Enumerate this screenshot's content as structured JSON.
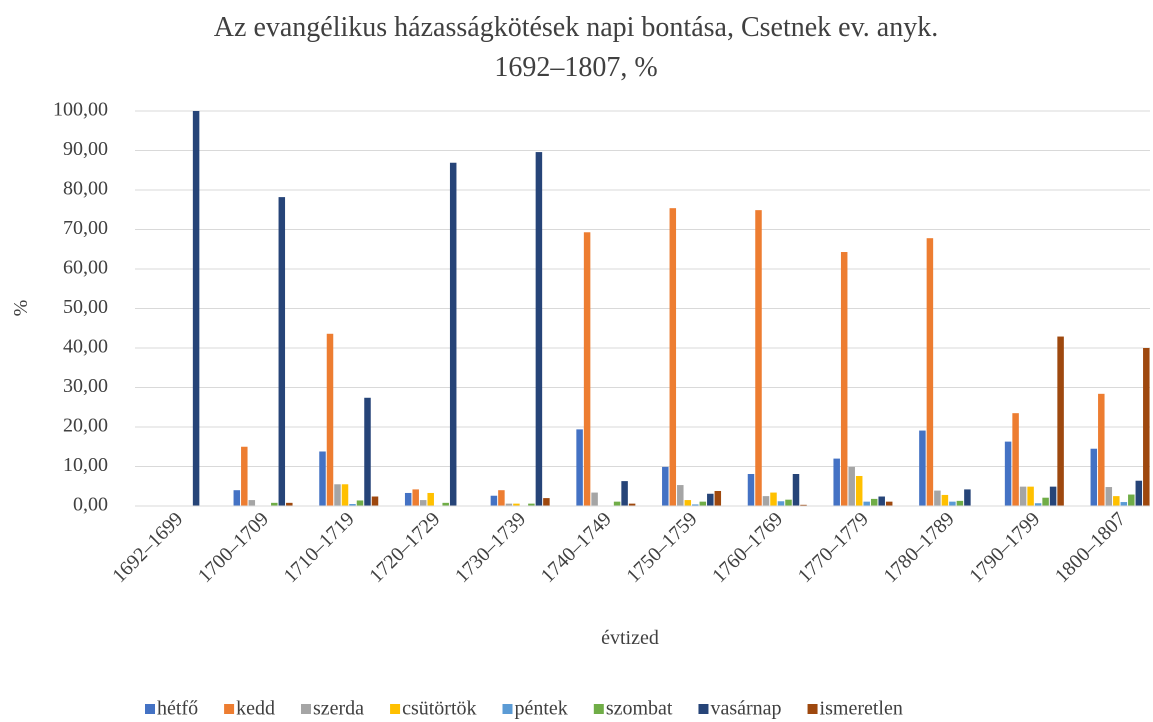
{
  "chart_data": {
    "type": "bar",
    "title": "Az evangélikus házasságkötések napi bontása, Csetnek ev. anyk. 1692–1807, %",
    "x_label": "évtized",
    "y_label": "%",
    "categories": [
      "1692–1699",
      "1700–1709",
      "1710–1719",
      "1720–1729",
      "1730–1739",
      "1740–1749",
      "1750–1759",
      "1760–1769",
      "1770–1779",
      "1780–1789",
      "1790–1799",
      "1800–1807"
    ],
    "series": [
      {
        "name": "hétfő",
        "color": "#4472c4",
        "values": [
          0,
          4,
          13.8,
          3.3,
          2.6,
          19.4,
          9.9,
          8.1,
          12,
          19.1,
          16.3,
          14.5
        ]
      },
      {
        "name": "kedd",
        "color": "#ed7d31",
        "values": [
          0,
          15,
          43.6,
          4.2,
          4,
          69.3,
          75.4,
          74.9,
          64.3,
          67.8,
          23.5,
          28.4
        ]
      },
      {
        "name": "szerda",
        "color": "#a5a5a5",
        "values": [
          0,
          1.5,
          5.5,
          1.5,
          0.6,
          3.4,
          5.3,
          2.5,
          9.9,
          3.9,
          4.9,
          4.8
        ]
      },
      {
        "name": "csütörtök",
        "color": "#ffc000",
        "values": [
          0,
          0,
          5.5,
          3.3,
          0.6,
          0,
          1.5,
          3.4,
          7.6,
          2.8,
          4.9,
          2.5
        ]
      },
      {
        "name": "péntek",
        "color": "#5b9bd5",
        "values": [
          0,
          0,
          0.5,
          0,
          0,
          0,
          0.4,
          1.2,
          1.1,
          1.1,
          0.7,
          1
        ]
      },
      {
        "name": "szombat",
        "color": "#70ad47",
        "values": [
          0,
          0.8,
          1.4,
          0.8,
          0.6,
          1.1,
          1.1,
          1.6,
          1.8,
          1.3,
          2.1,
          2.9
        ]
      },
      {
        "name": "vasárnap",
        "color": "#264478",
        "values": [
          100,
          78.2,
          27.4,
          86.9,
          89.6,
          6.3,
          3.1,
          8.1,
          2.4,
          4.2,
          4.9,
          6.4
        ]
      },
      {
        "name": "ismeretlen",
        "color": "#9e480e",
        "values": [
          0,
          0.8,
          2.4,
          0,
          2,
          0.6,
          3.8,
          0.3,
          1.1,
          0,
          42.9,
          40
        ]
      }
    ],
    "ylim": [
      0,
      100
    ],
    "yticks": [
      {
        "value": 0,
        "label": "0,00"
      },
      {
        "value": 10,
        "label": "10,00"
      },
      {
        "value": 20,
        "label": "20,00"
      },
      {
        "value": 30,
        "label": "30,00"
      },
      {
        "value": 40,
        "label": "40,00"
      },
      {
        "value": 50,
        "label": "50,00"
      },
      {
        "value": 60,
        "label": "60,00"
      },
      {
        "value": 70,
        "label": "70,00"
      },
      {
        "value": 80,
        "label": "80,00"
      },
      {
        "value": 90,
        "label": "90,00"
      },
      {
        "value": 100,
        "label": "100,00"
      }
    ],
    "grid": true,
    "legend": "bottom"
  }
}
